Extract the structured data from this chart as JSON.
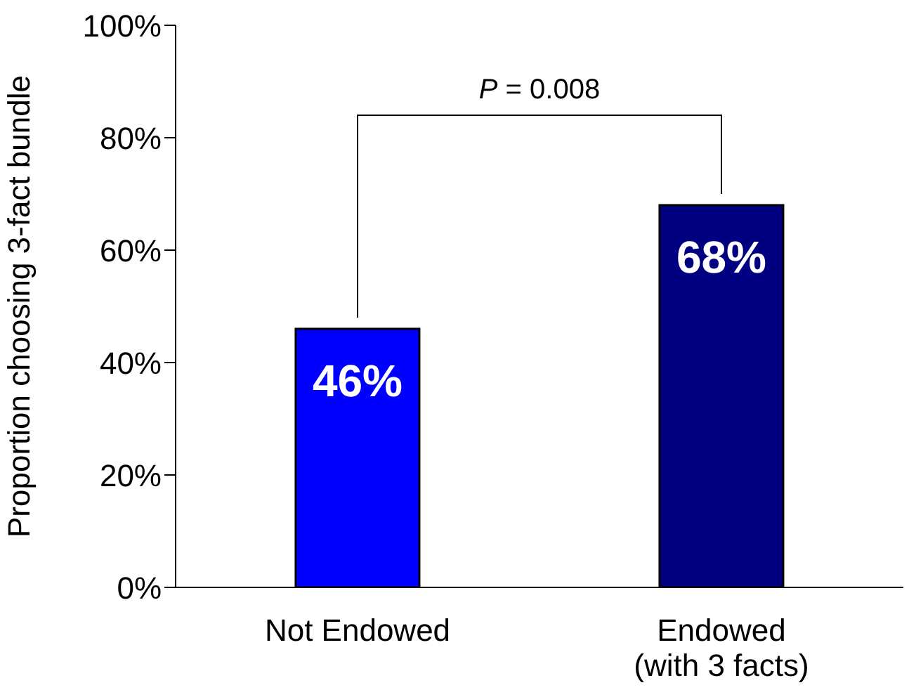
{
  "chart_data": {
    "type": "bar",
    "ylabel": "Proportion choosing 3-fact bundle",
    "categories": [
      "Not Endowed",
      "Endowed\n(with 3 facts)"
    ],
    "values": [
      46,
      68
    ],
    "colors": [
      "#0000ff",
      "#000080"
    ],
    "value_labels": [
      "46%",
      "68%"
    ],
    "ylim": [
      0,
      100
    ],
    "yticks": [
      {
        "value": 0,
        "label": "0%"
      },
      {
        "value": 20,
        "label": "20%"
      },
      {
        "value": 40,
        "label": "40%"
      },
      {
        "value": 60,
        "label": "60%"
      },
      {
        "value": 80,
        "label": "80%"
      },
      {
        "value": 100,
        "label": "100%"
      }
    ],
    "annotations": [
      "P = 0.008"
    ],
    "grid": false,
    "legend": false
  }
}
